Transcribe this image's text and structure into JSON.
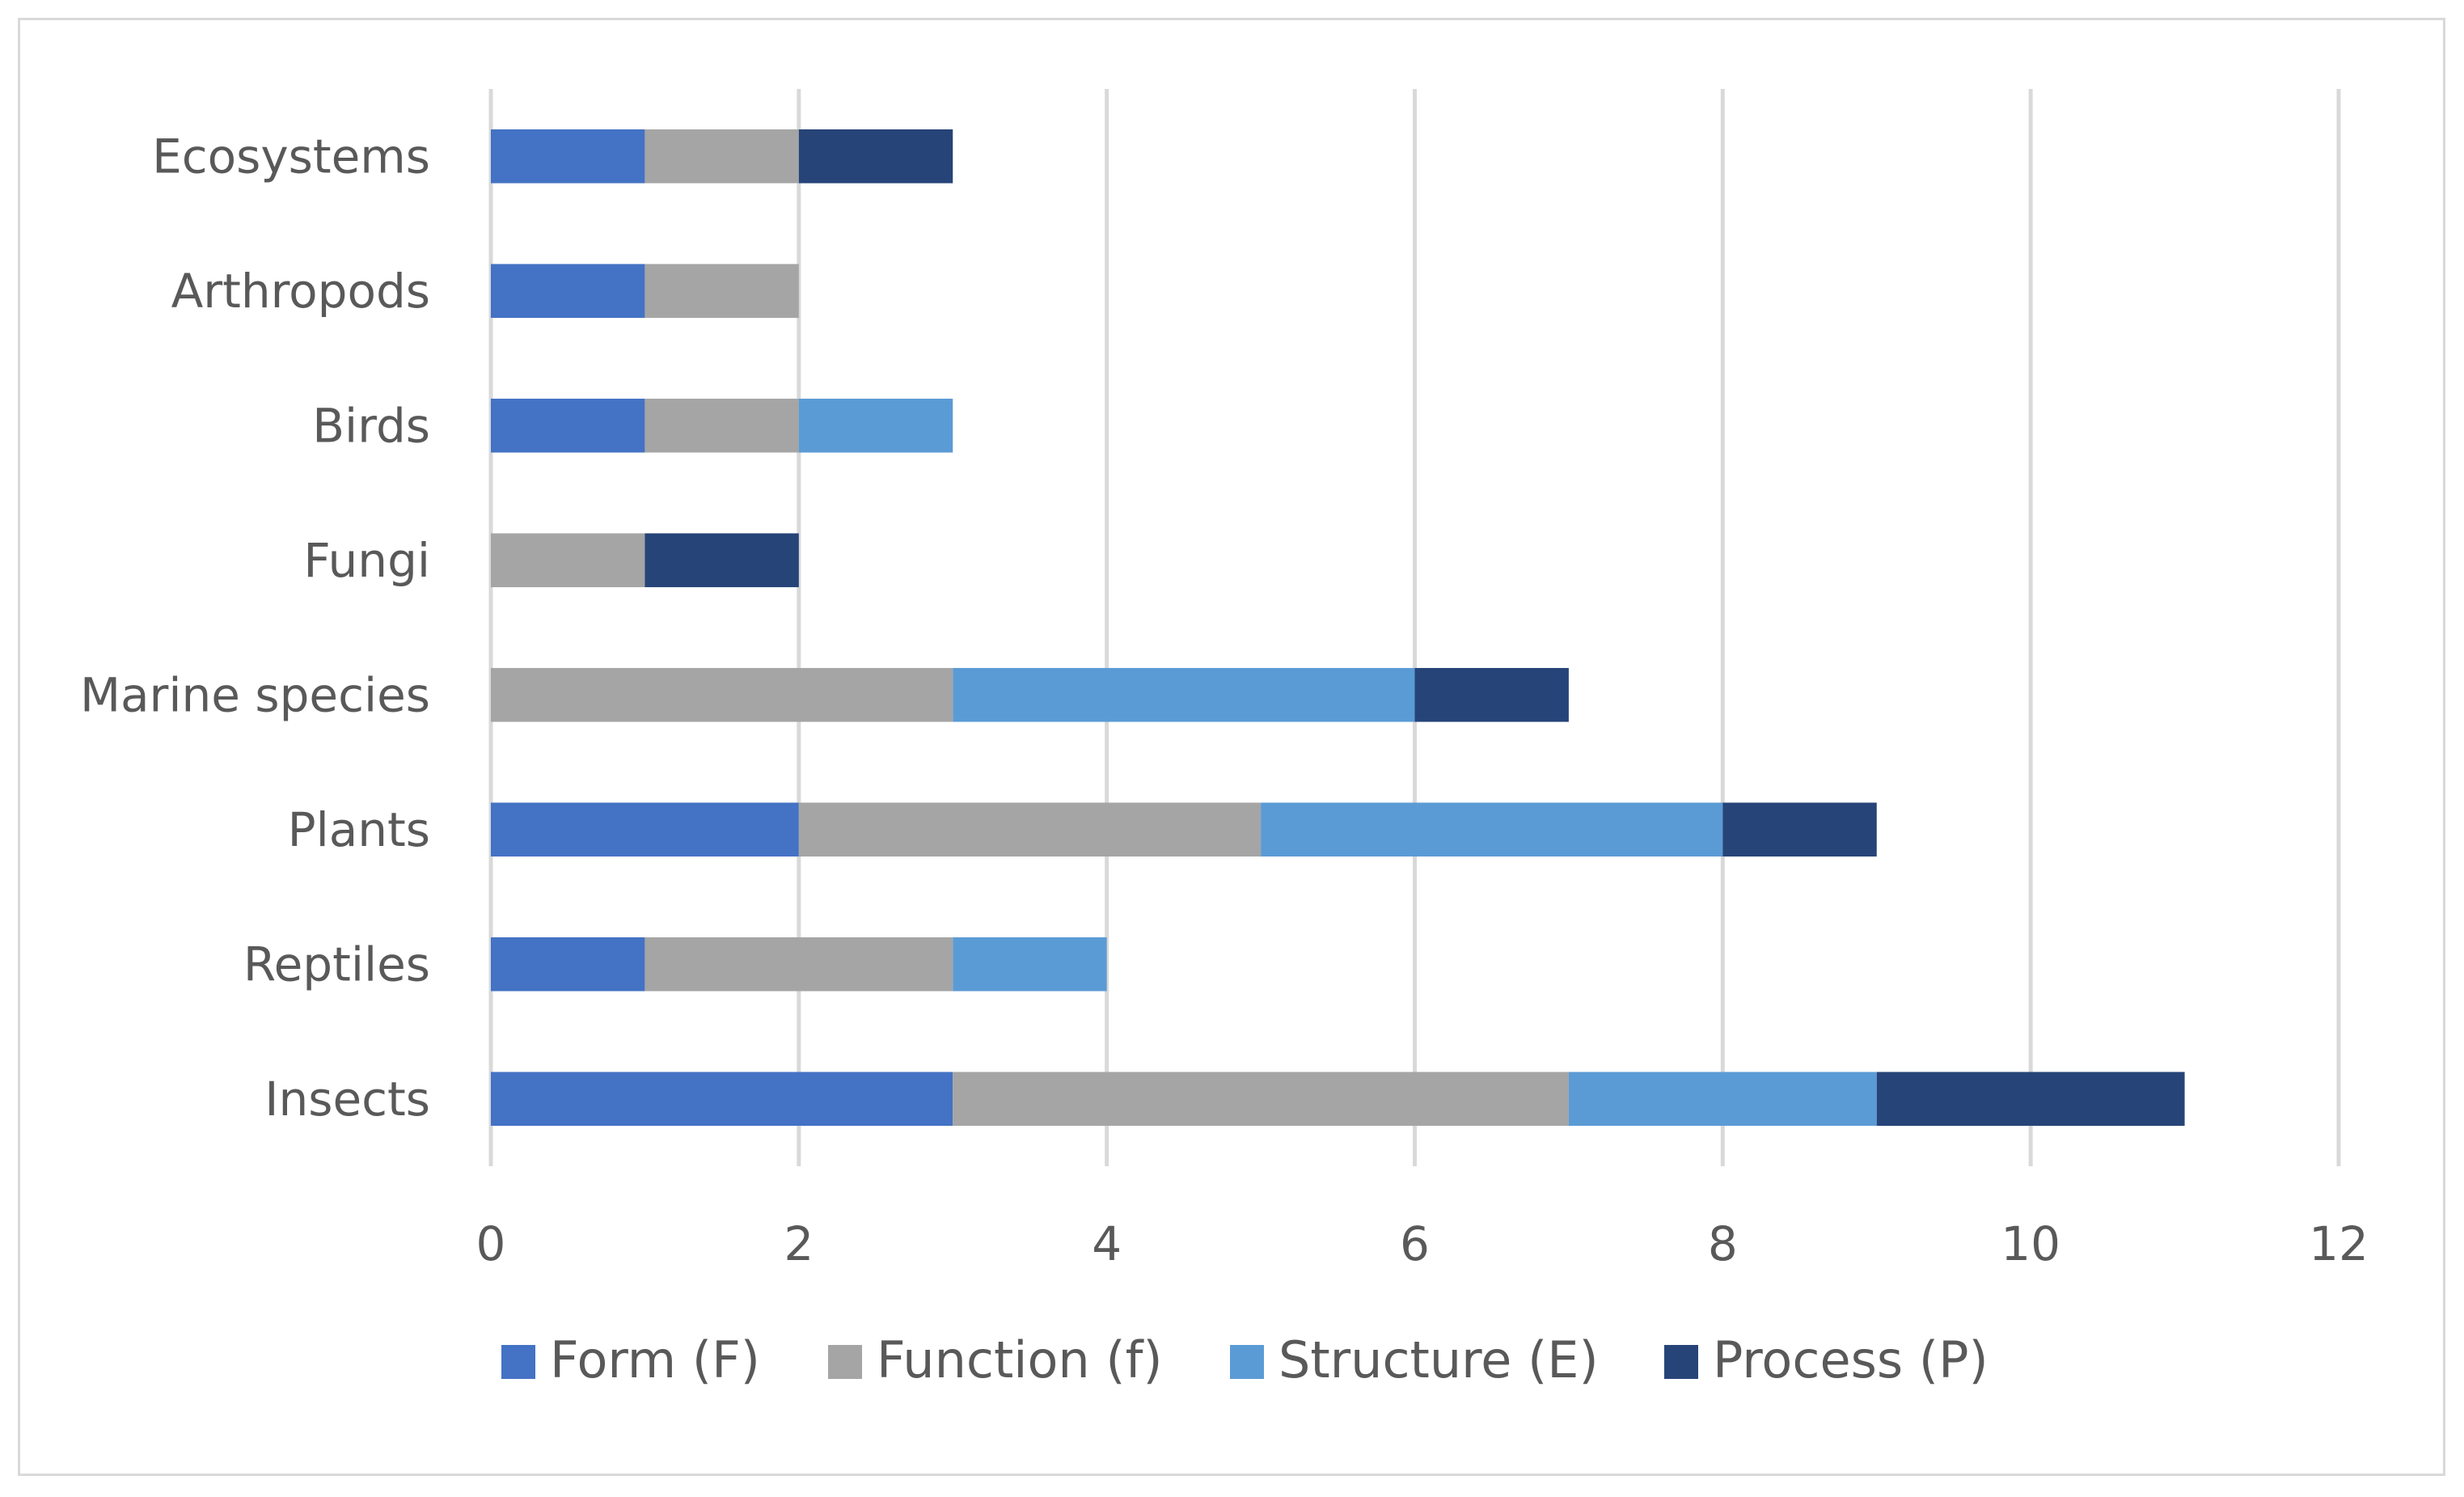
{
  "chart_data": {
    "type": "bar",
    "orientation": "horizontal",
    "stacked": true,
    "categories": [
      "Insects",
      "Reptiles",
      "Plants",
      "Marine species",
      "Fungi",
      "Birds",
      "Arthropods",
      "Ecosystems"
    ],
    "series": [
      {
        "name": "Form (F)",
        "color": "#4472c4",
        "values": [
          3,
          1,
          2,
          0,
          0,
          1,
          1,
          1
        ]
      },
      {
        "name": "Function (f)",
        "color": "#a5a5a5",
        "values": [
          4,
          2,
          3,
          3,
          1,
          1,
          1,
          1
        ]
      },
      {
        "name": "Structure (E)",
        "color": "#5b9bd5",
        "values": [
          2,
          1,
          3,
          3,
          0,
          1,
          0,
          0
        ]
      },
      {
        "name": "Process (P)",
        "color": "#264478",
        "values": [
          2,
          0,
          1,
          1,
          1,
          0,
          0,
          1
        ]
      }
    ],
    "xlim": [
      0,
      12
    ],
    "x_ticks": [
      "0",
      "2",
      "4",
      "6",
      "8",
      "10",
      "12"
    ],
    "grid": "vertical",
    "legend_position": "bottom",
    "title": "",
    "xlabel": "",
    "ylabel": ""
  }
}
